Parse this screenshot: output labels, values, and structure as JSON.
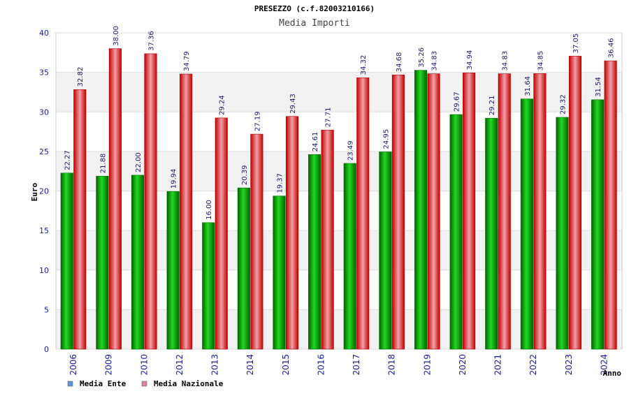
{
  "chart_data": {
    "type": "bar",
    "title": "PRESEZZO (c.f.82003210166)",
    "subtitle": "Media Importi",
    "xlabel": "Anno",
    "ylabel": "Euro",
    "ylim": [
      0,
      40
    ],
    "yticks": [
      0,
      5,
      10,
      15,
      20,
      25,
      30,
      35,
      40
    ],
    "grid": true,
    "legend_position": "bottom-left",
    "categories": [
      "2006",
      "2009",
      "2010",
      "2012",
      "2013",
      "2014",
      "2015",
      "2016",
      "2017",
      "2018",
      "2019",
      "2020",
      "2021",
      "2022",
      "2023",
      "2024"
    ],
    "series": [
      {
        "name": "Media Ente",
        "color": "#00a000",
        "legend_color": "#5b9bd5",
        "values": [
          22.27,
          21.88,
          22.0,
          19.94,
          16.0,
          20.39,
          19.37,
          24.61,
          23.49,
          24.95,
          35.26,
          29.67,
          29.21,
          31.64,
          29.32,
          31.54
        ],
        "labels": [
          "22.27",
          "21.88",
          "22.00",
          "19.94",
          "16.00",
          "20.39",
          "19.37",
          "24.61",
          "23.49",
          "24.95",
          "35.26",
          "29.67",
          "29.21",
          "31.64",
          "29.32",
          "31.54"
        ]
      },
      {
        "name": "Media Nazionale",
        "color": "#e00000",
        "legend_color": "#e37fa8",
        "values": [
          32.82,
          38.0,
          37.36,
          34.79,
          29.24,
          27.19,
          29.43,
          27.71,
          34.32,
          34.68,
          34.83,
          34.94,
          34.83,
          34.85,
          37.05,
          36.46
        ],
        "labels": [
          "32.82",
          "38.00",
          "37.36",
          "34.79",
          "29.24",
          "27.19",
          "29.43",
          "27.71",
          "34.32",
          "34.68",
          "34.83",
          "34.94",
          "34.83",
          "34.85",
          "37.05",
          "36.46"
        ]
      }
    ]
  }
}
